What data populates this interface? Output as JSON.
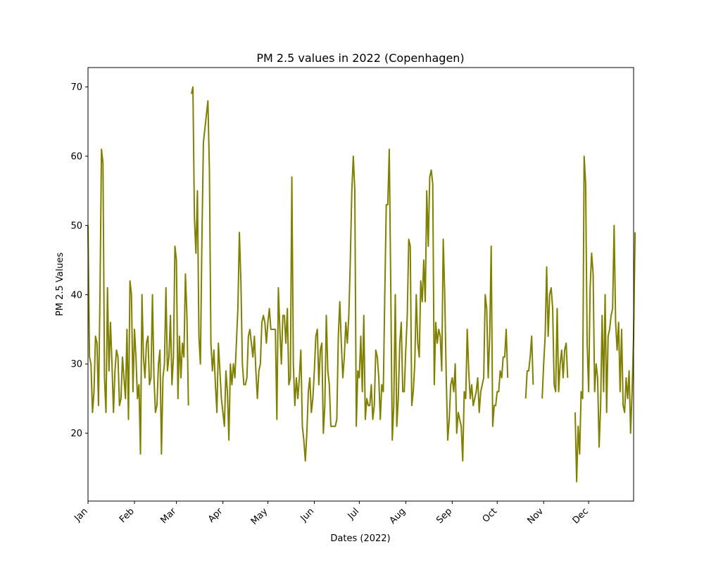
{
  "chart_data": {
    "type": "line",
    "title": "PM 2.5 values in 2022 (Copenhagen)",
    "xlabel": "Dates (2022)",
    "ylabel": "PM 2.5 Values",
    "x_ticks": [
      "Jan",
      "Feb",
      "Mar",
      "Apr",
      "May",
      "Jun",
      "Jul",
      "Aug",
      "Sep",
      "Oct",
      "Nov",
      "Dec"
    ],
    "y_ticks": [
      20,
      30,
      40,
      50,
      60,
      70
    ],
    "xlim": [
      "2022-01-01",
      "2022-12-31"
    ],
    "ylim": [
      10.2,
      72.8
    ],
    "grid": false,
    "series": [
      {
        "color": "#808000",
        "segments": [
          {
            "start": "2022-01-01",
            "values": [
              50,
              31,
              30,
              23,
              26,
              34,
              33,
              24,
              40,
              61,
              59,
              28,
              23,
              41,
              29,
              36,
              30,
              23,
              29,
              32,
              31,
              24,
              25,
              31,
              28,
              25,
              35,
              22,
              42,
              40,
              26,
              35,
              31,
              25,
              27,
              17,
              40,
              31,
              28,
              33,
              34,
              27,
              28,
              40,
              28,
              23,
              24,
              30,
              32,
              17,
              28,
              30,
              41,
              29,
              31,
              37,
              27,
              31,
              47,
              45,
              25,
              34,
              28,
              33,
              31,
              43,
              37,
              24
            ]
          },
          {
            "start": "2022-03-11",
            "values": [
              69,
              70,
              51,
              46,
              55,
              34,
              30,
              48,
              62,
              64,
              66,
              68,
              58,
              33,
              29,
              32,
              27,
              23,
              33,
              29,
              25,
              23,
              21,
              29,
              26,
              19,
              30,
              27,
              30,
              28,
              33,
              38,
              49,
              42,
              30,
              27,
              27,
              28,
              34,
              35,
              33,
              31,
              34,
              29,
              25,
              29,
              30,
              36,
              37,
              36,
              33,
              36,
              38,
              35,
              35,
              35,
              35,
              22,
              41,
              35,
              30,
              37,
              37,
              33,
              38,
              27,
              28,
              57,
              30,
              24,
              28,
              25,
              28,
              32,
              21,
              19,
              16,
              20,
              26,
              28,
              23,
              25,
              29,
              34,
              35,
              27,
              32,
              33,
              20,
              24,
              37,
              29,
              27,
              21,
              21,
              21,
              21,
              22,
              34,
              39,
              33,
              28,
              31,
              36,
              33,
              37,
              45,
              55,
              60,
              55,
              21,
              29,
              28,
              34,
              26,
              37,
              22,
              25,
              24,
              24,
              27,
              22,
              24,
              32,
              31,
              28,
              22,
              27,
              26,
              40,
              53,
              53,
              61,
              41,
              19,
              24,
              40,
              21,
              25,
              33,
              36,
              26,
              26,
              32,
              37,
              48,
              47,
              24,
              26,
              30,
              40,
              33,
              31,
              42,
              39,
              45,
              39,
              55,
              47,
              57,
              58,
              56,
              27,
              36,
              33,
              35,
              34,
              29,
              48,
              40,
              28,
              19,
              22,
              27,
              28,
              26,
              30,
              20,
              23,
              22,
              21,
              16,
              26,
              25,
              35,
              29,
              25,
              27,
              24,
              25,
              26,
              28,
              23,
              26,
              27,
              28,
              40,
              38,
              28,
              34,
              47,
              21,
              24,
              24,
              26,
              26,
              29,
              28,
              31,
              31,
              35,
              28
            ]
          },
          {
            "start": "2022-10-20",
            "values": [
              25,
              29,
              29,
              31,
              34,
              27
            ]
          },
          {
            "start": "2022-10-31",
            "values": [
              25,
              30,
              34,
              44,
              34,
              40,
              41,
              38,
              27,
              26,
              38,
              26,
              30,
              32,
              28,
              32,
              33,
              28
            ]
          },
          {
            "start": "2022-11-22",
            "values": [
              23,
              13,
              21,
              17,
              26,
              25,
              60,
              56,
              33,
              26,
              41,
              46,
              43,
              26,
              30,
              28,
              18,
              24,
              37,
              26,
              40,
              23,
              34,
              35,
              37,
              38,
              50,
              36,
              32,
              36,
              26,
              35,
              24,
              23,
              28,
              25,
              29,
              20,
              26,
              34,
              49
            ]
          }
        ]
      }
    ]
  }
}
